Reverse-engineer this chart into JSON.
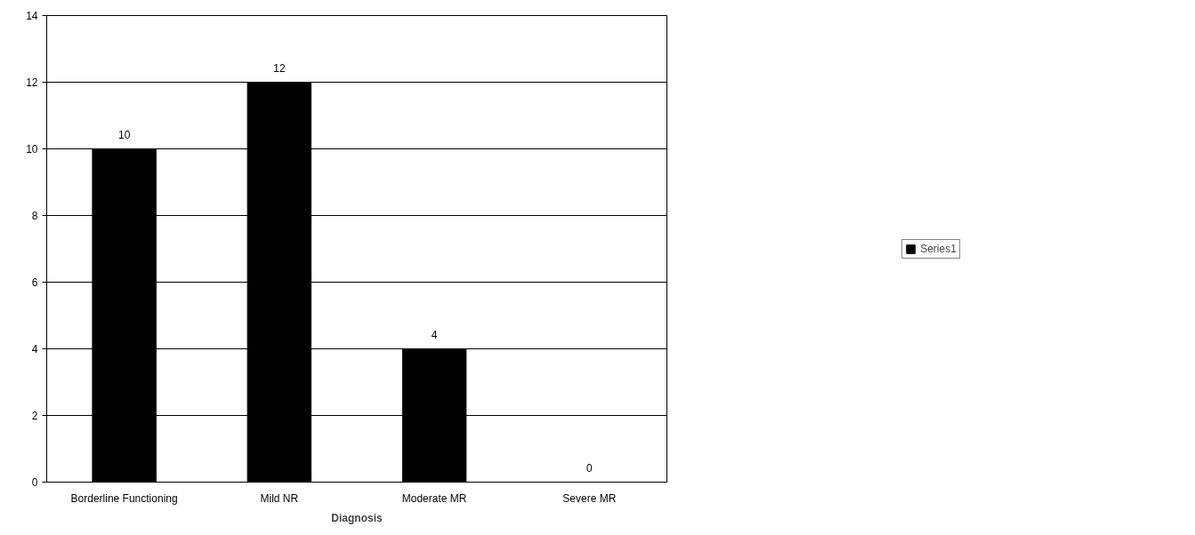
{
  "chart_data": {
    "type": "bar",
    "xlabel": "Diagnosis",
    "categories": [
      "Borderline Functioning",
      "Mild NR",
      "Moderate MR",
      "Severe MR"
    ],
    "series": [
      {
        "name": "Series1",
        "color": "#000000",
        "values": [
          10,
          12,
          4,
          0
        ]
      }
    ],
    "ylim": [
      0,
      14
    ],
    "yticks": [
      0,
      2,
      4,
      6,
      8,
      10,
      12,
      14
    ],
    "grid": "y",
    "legend": "right",
    "data_labels": true
  }
}
